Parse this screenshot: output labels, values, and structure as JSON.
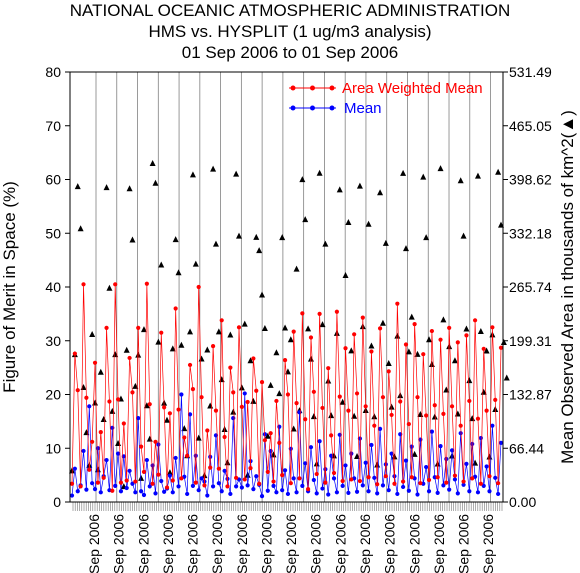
{
  "header": {
    "title_line1": "NATIONAL OCEANIC ATMOSPHERIC ADMINISTRATION",
    "title_line2": "HMS vs. HYSPLIT (1 ug/m3 analysis)",
    "title_line3": "01 Sep 2006 to 01 Sep 2006"
  },
  "colors": {
    "awm": "#ff0000",
    "mean": "#0000ff",
    "area": "#000000",
    "grid": "#808080"
  },
  "chart_data": {
    "type": "line",
    "title": "NATIONAL OCEANIC ATMOSPHERIC ADMINISTRATION",
    "subtitle": "HMS vs. HYSPLIT (1 ug/m3 analysis)",
    "date_range": "01 Sep 2006 to 01 Sep 2006",
    "ylabel": "Figure of Merit in Space (%)",
    "y2label": "Mean Observed Area in thousands of km^2",
    "y2label_marker": "(▲)",
    "ylim": [
      0,
      80
    ],
    "y2lim": [
      0,
      531.49
    ],
    "yticks": [
      "0",
      "10",
      "20",
      "30",
      "40",
      "50",
      "60",
      "70",
      "80"
    ],
    "y2ticks": [
      "0.00",
      "66.44",
      "132.87",
      "199.31",
      "265.74",
      "332.18",
      "398.62",
      "465.05",
      "531.49"
    ],
    "xticks": [
      "Sep 2006",
      "Sep 2006",
      "Sep 2006",
      "Sep 2006",
      "Sep 2006",
      "Sep 2006",
      "Sep 2006",
      "Sep 2006",
      "Sep 2006",
      "Sep 2006",
      "Sep 2006",
      "Sep 2006",
      "Sep 2006",
      "Sep 2006",
      "Sep 2006",
      "Sep 2006",
      "Sep 2006"
    ],
    "legend": [
      "Area Weighted Mean",
      "Mean"
    ],
    "legend_position": "top-right",
    "grid": "vertical",
    "series": [
      {
        "name": "Area Weighted Mean",
        "values": [
          3.4,
          27.6,
          20.8,
          2.9,
          40.5,
          19.4,
          6.0,
          11.2,
          25.9,
          3.6,
          13.0,
          4.5,
          32.4,
          18.7,
          2.1,
          40.5,
          19.1,
          3.6,
          14.6,
          4.0,
          26.8,
          20.4,
          3.8,
          32.4,
          10.3,
          5.6,
          40.6,
          18.2,
          3.4,
          11.2,
          5.1,
          31.5,
          17.6,
          2.7,
          16.5,
          4.0,
          36.0,
          17.2,
          4.4,
          12.0,
          8.6,
          25.5,
          21.0,
          3.6,
          40.0,
          19.5,
          3.1,
          13.3,
          6.4,
          29.0,
          17.0,
          6.2,
          33.8,
          12.1,
          2.9,
          25.0,
          20.4,
          4.5,
          32.5,
          17.7,
          4.2,
          18.6,
          6.3,
          26.7,
          20.7,
          3.4,
          22.3,
          11.5,
          5.6,
          12.8,
          3.8,
          18.8,
          11.0,
          5.0,
          26.4,
          20.0,
          3.5,
          31.7,
          18.4,
          4.4,
          35.1,
          15.4,
          2.4,
          30.6,
          20.5,
          5.2,
          35.0,
          17.5,
          3.6,
          24.9,
          12.4,
          5.4,
          35.4,
          19.6,
          3.9,
          28.6,
          17.0,
          4.2,
          31.2,
          20.2,
          3.9,
          34.3,
          17.8,
          4.6,
          28.0,
          14.2,
          3.3,
          32.3,
          19.5,
          4.8,
          24.3,
          16.2,
          3.4,
          36.9,
          18.7,
          3.8,
          29.3,
          14.5,
          4.6,
          33.1,
          19.5,
          3.5,
          27.5,
          16.1,
          4.1,
          31.8,
          18.0,
          4.6,
          30.2,
          16.4,
          3.6,
          32.4,
          17.8,
          4.9,
          29.7,
          14.2,
          3.8,
          31.0,
          18.8,
          4.4,
          33.8,
          15.5,
          3.4,
          28.5,
          17.0,
          4.8,
          32.5,
          19.0,
          3.5,
          28.7
        ]
      },
      {
        "name": "Mean",
        "values": [
          1.2,
          6.2,
          2.0,
          3.1,
          9.5,
          2.3,
          17.8,
          3.5,
          2.4,
          10.0,
          1.8,
          4.8,
          7.8,
          2.2,
          13.8,
          3.0,
          9.0,
          2.0,
          8.5,
          2.6,
          5.8,
          3.4,
          1.8,
          15.6,
          2.0,
          1.3,
          7.8,
          2.9,
          6.8,
          1.6,
          10.7,
          3.9,
          1.9,
          2.5,
          4.9,
          1.8,
          8.2,
          2.9,
          20.0,
          4.7,
          1.5,
          16.3,
          3.0,
          8.6,
          2.2,
          4.4,
          3.8,
          1.2,
          8.4,
          2.9,
          12.4,
          3.5,
          2.0,
          5.8,
          4.3,
          1.5,
          15.6,
          2.9,
          4.2,
          2.7,
          20.2,
          3.1,
          7.6,
          2.4,
          4.8,
          3.2,
          1.1,
          12.6,
          2.1,
          9.5,
          3.0,
          1.8,
          14.0,
          2.2,
          5.9,
          1.5,
          9.9,
          4.4,
          1.8,
          16.7,
          3.0,
          7.2,
          2.0,
          10.2,
          4.1,
          1.6,
          11.3,
          2.5,
          6.1,
          1.4,
          8.6,
          4.4,
          1.8,
          12.5,
          3.0,
          6.8,
          1.7,
          9.0,
          4.4,
          1.9,
          11.8,
          3.1,
          7.3,
          2.0,
          10.6,
          4.5,
          1.6,
          13.6,
          3.1,
          7.0,
          2.2,
          9.0,
          4.8,
          1.5,
          12.6,
          2.8,
          7.7,
          2.1,
          10.3,
          4.4,
          1.4,
          11.6,
          3.4,
          6.5,
          2.0,
          13.1,
          4.6,
          1.7,
          10.4,
          3.1,
          8.0,
          2.3,
          9.6,
          4.2,
          1.6,
          12.8,
          3.2,
          7.1,
          2.0,
          10.8,
          4.7,
          1.8,
          11.9,
          3.0,
          6.6,
          2.0,
          14.2,
          4.5,
          1.5,
          11.0
        ]
      },
      {
        "name": "Mean Observed Area",
        "axis": "right",
        "values": [
          38.5,
          182.2,
          389.8,
          337.8,
          141.6,
          85.8,
          45.2,
          207.1,
          122.4,
          39.8,
          160.3,
          102.0,
          388.6,
          264.2,
          112.0,
          182.1,
          72.3,
          127.3,
          19.0,
          187.6,
          387.2,
          323.8,
          142.9,
          181.6,
          29.2,
          213.0,
          118.9,
          77.7,
          418.4,
          394.0,
          197.6,
          293.0,
          122.2,
          101.0,
          36.3,
          189.2,
          324.3,
          283.4,
          193.8,
          90.7,
          57.1,
          210.3,
          404.4,
          294.0,
          79.0,
          176.8,
          32.6,
          187.9,
          118.6,
          411.5,
          318.7,
          210.3,
          151.3,
          89.6,
          48.5,
          206.4,
          111.1,
          405.2,
          328.7,
          141.1,
          219.9,
          33.0,
          174.6,
          124.4,
          327.1,
          310.7,
          255.8,
          214.4,
          81.2,
          144.2,
          58.3,
          184.5,
          133.9,
          326.8,
          215.1,
          160.9,
          200.5,
          90.3,
          287.9,
          113.0,
          398.5,
          349.0,
          214.0,
          176.6,
          105.5,
          47.1,
          406.3,
          219.3,
          318.7,
          149.5,
          106.7,
          57.0,
          208.5,
          385.8,
          123.3,
          280.0,
          345.4,
          186.8,
          106.0,
          56.3,
          390.4,
          216.8,
          113.1,
          343.3,
          192.8,
          105.4,
          45.7,
          382.2,
          221.0,
          319.7,
          171.2,
          117.3,
          55.8,
          205.1,
          131.5,
          406.2,
          313.2,
          185.6,
          228.5,
          58.9,
          182.4,
          108.1,
          401.6,
          326.7,
          200.6,
          169.9,
          105.1,
          47.0,
          412.0,
          225.1,
          138.5,
          192.1,
          56.8,
          174.6,
          108.8,
          397.1,
          328.7,
          213.8,
          150.0,
          103.0,
          48.1,
          402.8,
          210.8,
          135.6,
          186.7,
          55.6,
          206.5,
          114.4,
          407.6,
          342.2,
          197.2,
          153.3
        ]
      }
    ]
  }
}
